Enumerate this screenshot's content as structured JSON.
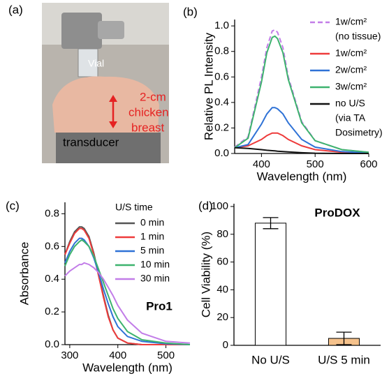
{
  "photo": {
    "label": "(a)",
    "vial": "Vial",
    "sample": [
      "2-cm",
      "chicken",
      "breast"
    ],
    "transducer": "transducer"
  },
  "chart_data": [
    {
      "type": "line",
      "label": "(b)",
      "xlabel": "Wavelength (nm)",
      "ylabel": "Relative PL Intensity",
      "xlim": [
        350,
        600
      ],
      "xticks": [
        400,
        500,
        600
      ],
      "ylim": [
        0,
        1.05
      ],
      "yticks": [
        {
          "value": 0,
          "label": "0.0"
        },
        0.2,
        0.4,
        0.6,
        0.8,
        {
          "value": 1,
          "label": "1.0"
        }
      ],
      "x": [
        350,
        375,
        400,
        410,
        420,
        425,
        430,
        440,
        450,
        475,
        500,
        550,
        600
      ],
      "series": [
        {
          "name": [
            "1w/cm²",
            "(no tissue)"
          ],
          "color": "#c27de8",
          "dash": true,
          "values": [
            0.05,
            0.13,
            0.6,
            0.83,
            0.96,
            0.97,
            0.95,
            0.83,
            0.6,
            0.25,
            0.1,
            0.03,
            0.01
          ]
        },
        {
          "name": [
            "1w/cm²"
          ],
          "color": "#ee3b3b",
          "values": [
            0.045,
            0.06,
            0.11,
            0.14,
            0.16,
            0.16,
            0.16,
            0.14,
            0.11,
            0.06,
            0.03,
            0.01,
            0.005
          ]
        },
        {
          "name": [
            "2w/cm²"
          ],
          "color": "#2f72d6",
          "values": [
            0.045,
            0.07,
            0.23,
            0.31,
            0.36,
            0.36,
            0.35,
            0.31,
            0.24,
            0.11,
            0.05,
            0.015,
            0.005
          ]
        },
        {
          "name": [
            "3w/cm²"
          ],
          "color": "#3db36e",
          "values": [
            0.045,
            0.12,
            0.56,
            0.79,
            0.91,
            0.92,
            0.9,
            0.79,
            0.58,
            0.24,
            0.1,
            0.03,
            0.01
          ]
        },
        {
          "name": [
            "no U/S",
            "(via TA",
            "Dosimetry)"
          ],
          "color": "#111111",
          "values": [
            0.045,
            0.04,
            0.03,
            0.025,
            0.022,
            0.02,
            0.018,
            0.015,
            0.012,
            0.006,
            0.002,
            0,
            0
          ]
        }
      ]
    },
    {
      "type": "line",
      "label": "(c)",
      "xlabel": "Wavelength (nm)",
      "ylabel": "Absorbance",
      "legend_title": "U/S time",
      "annotation": "Pro1",
      "xlim": [
        290,
        550
      ],
      "xticks": [
        300,
        400,
        500
      ],
      "ylim": [
        0,
        0.87
      ],
      "yticks": [
        {
          "value": 0,
          "label": "0.0"
        },
        0.2,
        0.4,
        0.6,
        0.8
      ],
      "x": [
        290,
        300,
        310,
        320,
        325,
        330,
        340,
        350,
        360,
        370,
        380,
        390,
        400,
        420,
        450,
        500,
        550
      ],
      "series": [
        {
          "name": "0 min",
          "color": "#555555",
          "values": [
            0.55,
            0.63,
            0.69,
            0.72,
            0.72,
            0.71,
            0.66,
            0.56,
            0.43,
            0.3,
            0.18,
            0.09,
            0.04,
            0.01,
            0,
            0,
            0
          ]
        },
        {
          "name": "1 min",
          "color": "#ee3b3b",
          "values": [
            0.55,
            0.62,
            0.68,
            0.71,
            0.71,
            0.7,
            0.65,
            0.55,
            0.42,
            0.29,
            0.17,
            0.09,
            0.04,
            0.01,
            0,
            0,
            0
          ]
        },
        {
          "name": "5 min",
          "color": "#2f72d6",
          "values": [
            0.5,
            0.57,
            0.62,
            0.65,
            0.65,
            0.64,
            0.6,
            0.53,
            0.44,
            0.34,
            0.25,
            0.17,
            0.11,
            0.05,
            0.02,
            0.005,
            0
          ]
        },
        {
          "name": "10 min",
          "color": "#3db36e",
          "values": [
            0.48,
            0.55,
            0.6,
            0.63,
            0.64,
            0.63,
            0.6,
            0.54,
            0.46,
            0.38,
            0.3,
            0.22,
            0.16,
            0.08,
            0.03,
            0.01,
            0
          ]
        },
        {
          "name": "30 min",
          "color": "#c27de8",
          "values": [
            0.42,
            0.45,
            0.47,
            0.49,
            0.49,
            0.5,
            0.49,
            0.47,
            0.44,
            0.4,
            0.35,
            0.3,
            0.24,
            0.15,
            0.07,
            0.02,
            0.01
          ]
        }
      ]
    },
    {
      "type": "bar",
      "label": "(d)",
      "ylabel": "Cell Viability (%)",
      "annotation": "ProDOX",
      "ylim": [
        0,
        102
      ],
      "yticks": [
        0,
        20,
        40,
        60,
        80,
        100
      ],
      "categories": [
        "No U/S",
        "U/S 5 min"
      ],
      "values": [
        88,
        5
      ],
      "errors": [
        4,
        4.5
      ],
      "colors": [
        "#ffffff",
        "#f5c28c"
      ]
    }
  ]
}
